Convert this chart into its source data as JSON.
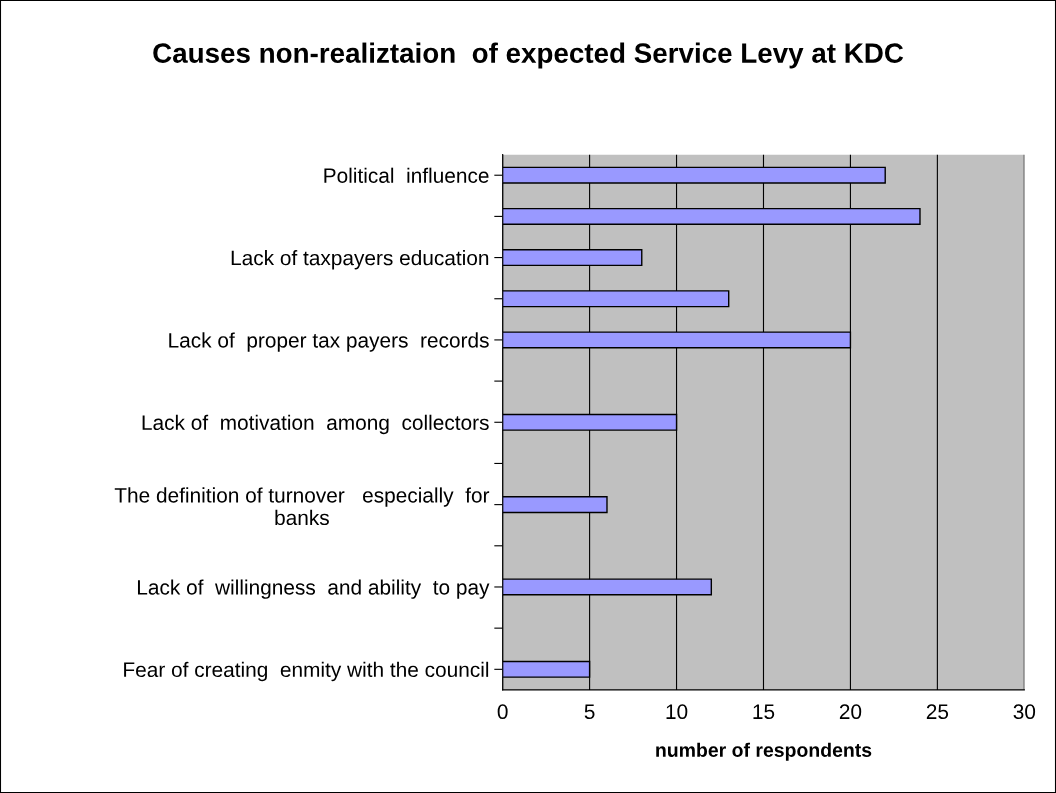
{
  "chart_data": {
    "type": "bar",
    "orientation": "horizontal",
    "title": "Causes non-realiztaion  of expected Service Levy at KDC",
    "xlabel": "number of respondents",
    "categories": [
      "Political  influence",
      null,
      "Lack of taxpayers education",
      null,
      "Lack of  proper tax payers  records",
      null,
      "Lack of  motivation  among  collectors",
      null,
      "The definition of turnover   especially  for\nbanks",
      null,
      "Lack of  willingness  and ability  to pay",
      null,
      "Fear of creating  enmity with the council"
    ],
    "values": [
      22,
      24,
      8,
      13,
      20,
      null,
      10,
      null,
      6,
      null,
      12,
      null,
      5
    ],
    "color": "#9999ff",
    "xlim": [
      0,
      30
    ],
    "xticks": [
      0,
      5,
      10,
      15,
      20,
      25,
      30
    ],
    "grid": "x",
    "legend": false
  }
}
